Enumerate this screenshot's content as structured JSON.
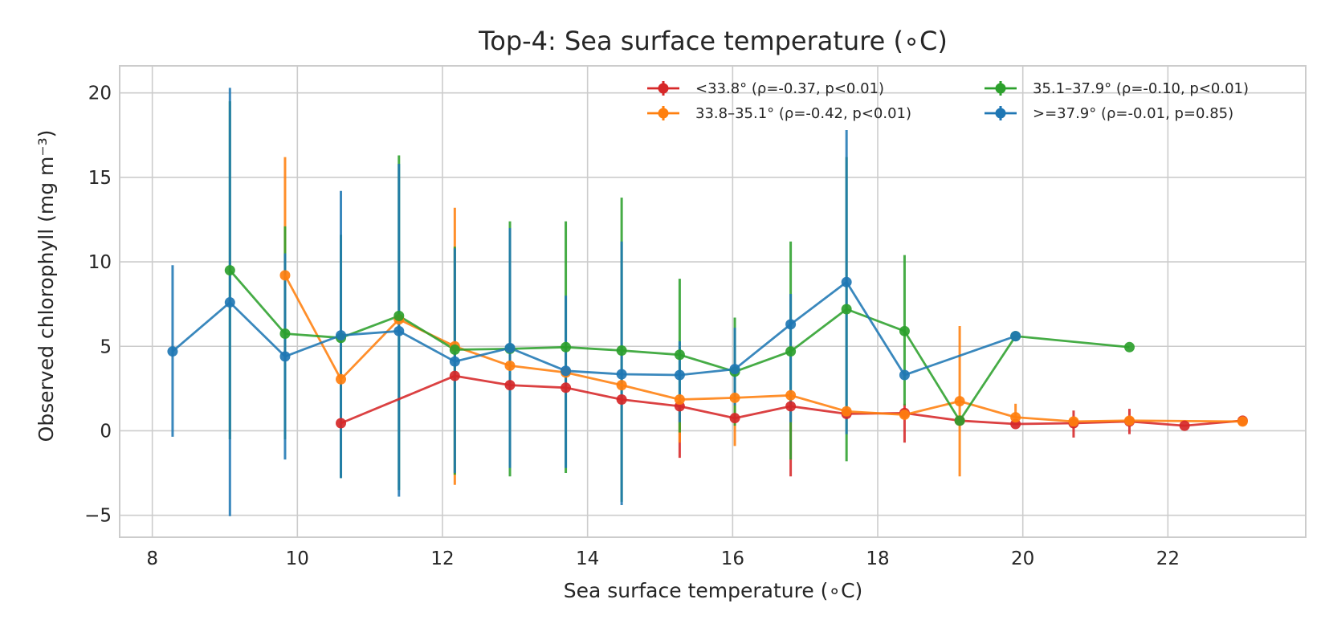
{
  "chart_data": {
    "type": "line",
    "title": "Top-4: Sea surface temperature (∘C)",
    "xlabel": "Sea surface temperature (∘C)",
    "ylabel": "Observed chlorophyll (mg m⁻³)",
    "xlim": [
      7.55,
      23.9
    ],
    "ylim": [
      -6.3,
      21.6
    ],
    "xticks": [
      8,
      10,
      12,
      14,
      16,
      18,
      20,
      22
    ],
    "yticks": [
      -5,
      0,
      5,
      10,
      15,
      20
    ],
    "xtick_labels": [
      "8",
      "10",
      "12",
      "14",
      "16",
      "18",
      "20",
      "22"
    ],
    "ytick_labels": [
      "−5",
      "0",
      "5",
      "10",
      "15",
      "20"
    ],
    "grid": true,
    "legend_position": "top-right",
    "series": [
      {
        "name": "<33.8° (ρ=-0.37, p<0.01)",
        "color": "#d62728",
        "x": [
          10.6,
          12.17,
          12.93,
          13.7,
          14.47,
          15.27,
          16.03,
          16.8,
          17.57,
          18.37,
          19.13,
          19.9,
          20.7,
          21.47,
          22.23,
          23.03
        ],
        "y": [
          0.45,
          3.25,
          2.7,
          2.55,
          1.85,
          1.45,
          0.75,
          1.45,
          1.0,
          1.05,
          0.6,
          0.4,
          0.45,
          0.55,
          0.3,
          0.6
        ],
        "yerr_low": [
          0.45,
          3.25,
          2.7,
          2.55,
          1.85,
          -1.6,
          0.75,
          -2.7,
          1.0,
          -0.7,
          0.6,
          0.4,
          -0.4,
          -0.2,
          0.3,
          0.6
        ],
        "yerr_high": [
          0.45,
          3.25,
          2.7,
          2.55,
          1.85,
          1.45,
          0.75,
          1.45,
          1.0,
          1.6,
          0.6,
          0.4,
          1.2,
          1.3,
          0.3,
          0.6
        ]
      },
      {
        "name": "33.8–35.1° (ρ=-0.42, p<0.01)",
        "color": "#ff7f0e",
        "x": [
          9.83,
          10.6,
          11.4,
          12.17,
          12.93,
          13.7,
          14.47,
          15.27,
          16.03,
          16.8,
          17.57,
          18.37,
          19.13,
          19.9,
          20.7,
          21.47,
          23.03
        ],
        "y": [
          9.2,
          3.05,
          6.6,
          5.0,
          3.85,
          3.45,
          2.7,
          1.85,
          1.95,
          2.1,
          1.15,
          0.95,
          1.75,
          0.8,
          0.55,
          0.6,
          0.55
        ],
        "yerr_low": [
          4.2,
          3.05,
          6.6,
          -3.2,
          3.85,
          3.45,
          2.7,
          -0.7,
          -0.9,
          2.1,
          1.15,
          0.95,
          -2.7,
          0.8,
          0.55,
          0.6,
          0.55
        ],
        "yerr_high": [
          16.2,
          3.05,
          6.6,
          13.2,
          3.85,
          3.45,
          2.7,
          1.85,
          1.95,
          2.1,
          1.15,
          0.95,
          6.2,
          1.6,
          0.55,
          0.6,
          0.55
        ]
      },
      {
        "name": "35.1–37.9° (ρ=-0.10, p<0.01)",
        "color": "#2ca02c",
        "x": [
          9.07,
          9.83,
          10.6,
          11.4,
          12.17,
          12.93,
          13.7,
          14.47,
          15.27,
          16.03,
          16.8,
          17.57,
          18.37,
          19.13,
          19.9,
          21.47
        ],
        "y": [
          9.5,
          5.75,
          5.5,
          6.8,
          4.8,
          4.85,
          4.95,
          4.75,
          4.5,
          3.5,
          4.7,
          7.2,
          5.9,
          0.6,
          5.6,
          4.95
        ],
        "yerr_low": [
          -0.5,
          -0.5,
          -2.8,
          -3.5,
          -2.6,
          -2.7,
          -2.5,
          -4.2,
          -0.1,
          0.3,
          -1.7,
          -1.8,
          1.5,
          0.6,
          5.6,
          4.95
        ],
        "yerr_high": [
          19.5,
          12.1,
          11.6,
          16.3,
          10.9,
          12.4,
          12.4,
          13.8,
          9.0,
          6.7,
          11.2,
          16.2,
          10.4,
          0.6,
          5.6,
          4.95
        ]
      },
      {
        "name": ">=37.9° (ρ=-0.01, p=0.85)",
        "color": "#1f77b4",
        "x": [
          8.28,
          9.07,
          9.83,
          10.6,
          11.4,
          12.17,
          12.93,
          13.7,
          14.47,
          15.27,
          16.03,
          16.8,
          17.57,
          18.37,
          19.9
        ],
        "y": [
          4.7,
          7.6,
          4.4,
          5.65,
          5.9,
          4.1,
          4.9,
          3.55,
          3.35,
          3.3,
          3.65,
          6.3,
          8.8,
          3.3,
          5.6
        ],
        "yerr_low": [
          -0.35,
          -5.05,
          -1.7,
          -2.8,
          -3.9,
          -2.5,
          -2.2,
          -2.2,
          -4.4,
          0.5,
          1.5,
          0.5,
          -0.2,
          3.3,
          5.6
        ],
        "yerr_high": [
          9.8,
          20.3,
          10.5,
          14.2,
          15.8,
          10.8,
          12.0,
          8.0,
          11.2,
          5.3,
          6.1,
          8.1,
          17.8,
          3.3,
          5.6
        ]
      }
    ]
  }
}
